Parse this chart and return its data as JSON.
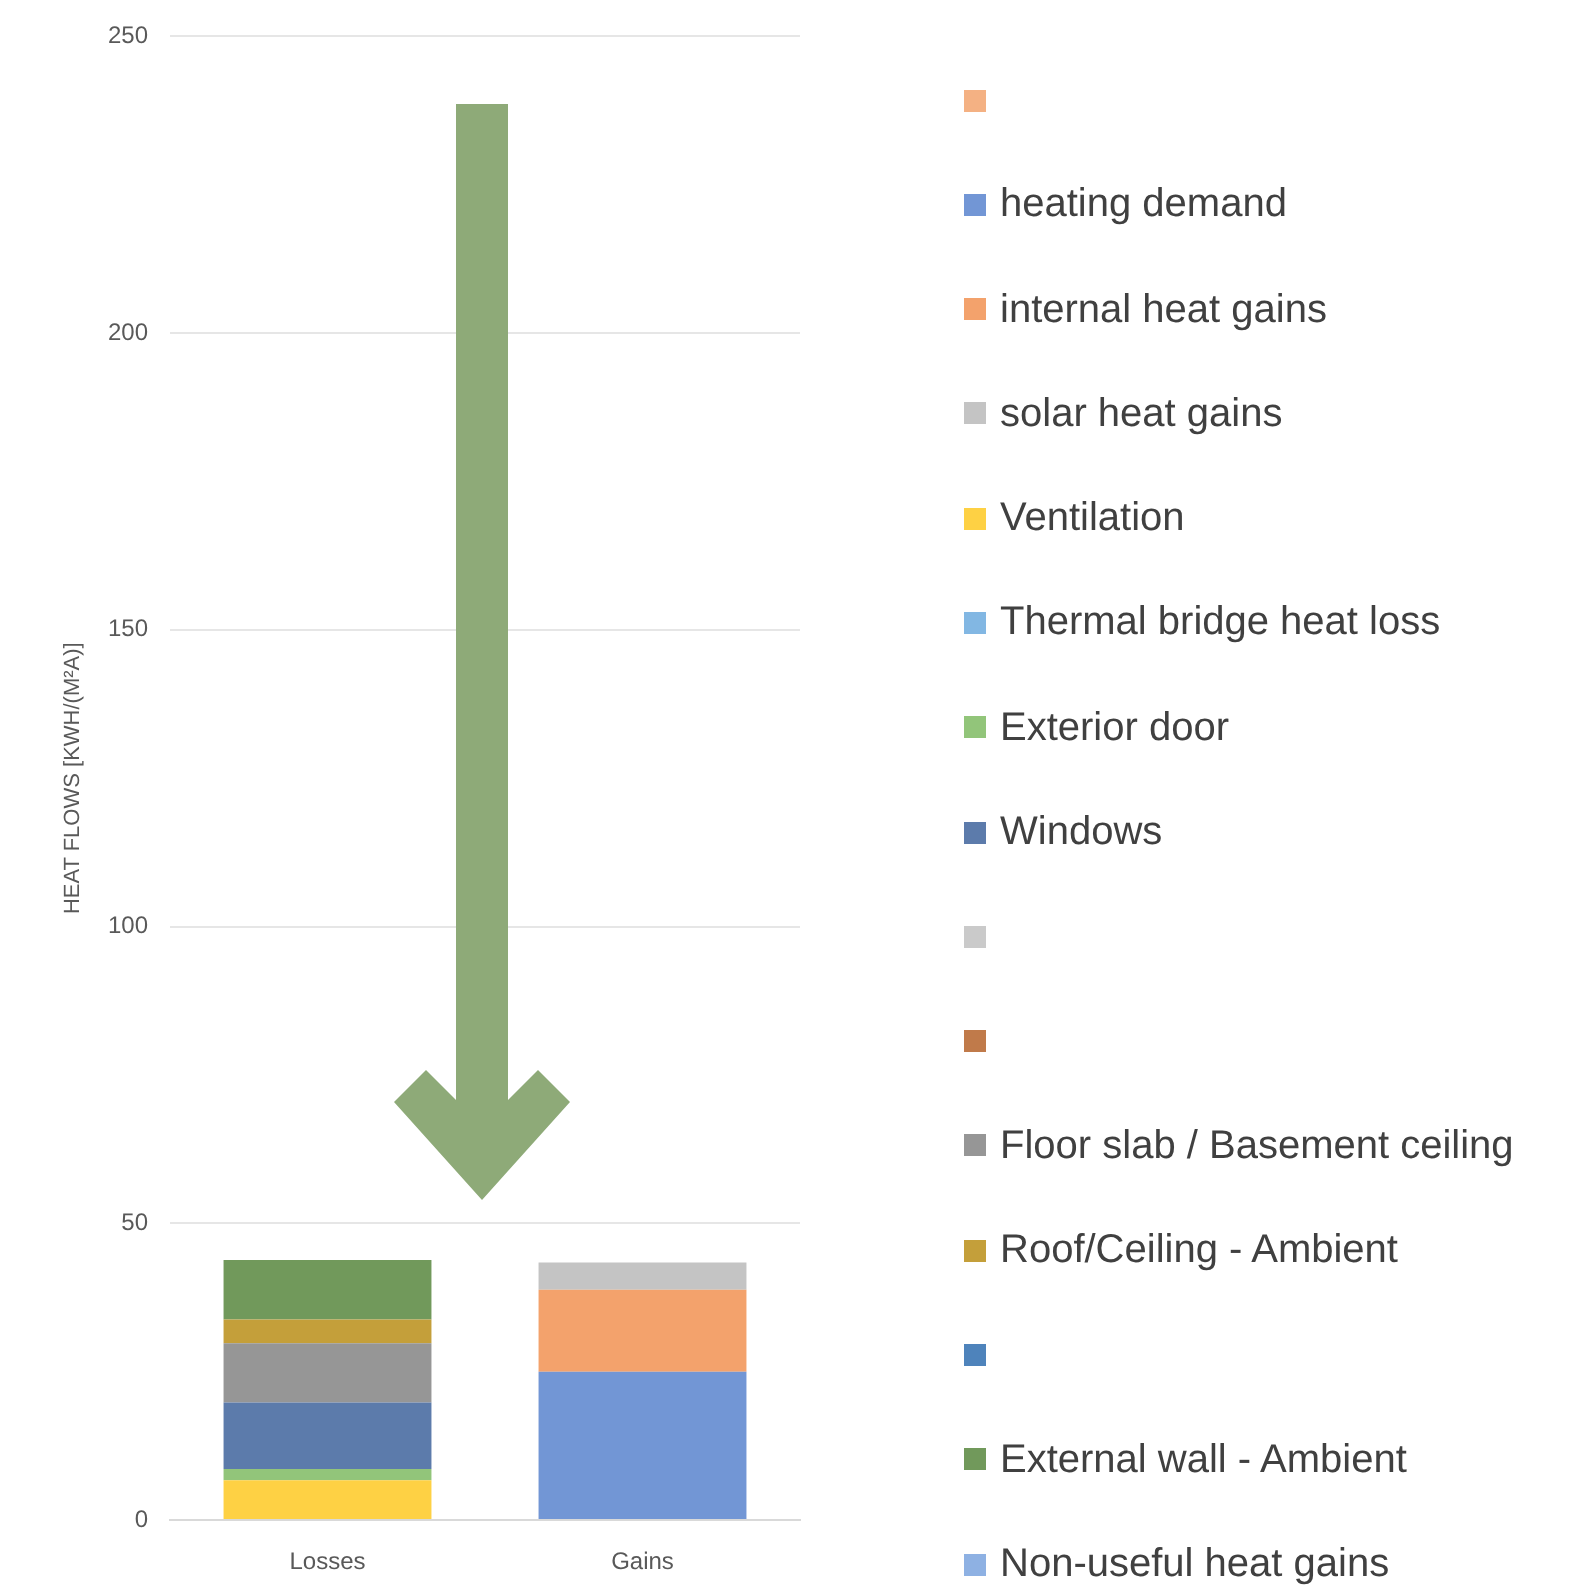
{
  "chart_data": {
    "type": "bar",
    "categories": [
      "Losses",
      "Gains"
    ],
    "ylabel": "HEAT FLOWS [KWH/(M²A)]",
    "ylim": [
      0,
      250
    ],
    "yticks": [
      0,
      50,
      100,
      150,
      200,
      250
    ],
    "stacked": true,
    "grid": "y",
    "legend": "right",
    "series": [
      {
        "color": "#f4b183",
        "values": [
          null,
          null
        ]
      },
      {
        "name": "heating demand",
        "color": "#7296d5",
        "values": [
          null,
          25
        ]
      },
      {
        "name": "internal heat gains",
        "color": "#f3a26c",
        "values": [
          null,
          13.8
        ]
      },
      {
        "name": "solar heat gains",
        "color": "#c4c4c4",
        "values": [
          null,
          4.6
        ]
      },
      {
        "name": "Ventilation",
        "color": "#fed144",
        "values": [
          6.7,
          null
        ]
      },
      {
        "name": "Thermal bridge heat loss",
        "color": "#82b7e3",
        "values": [
          null,
          null
        ]
      },
      {
        "name": "Exterior door",
        "color": "#92c57a",
        "values": [
          1.9,
          null
        ]
      },
      {
        "name": "Windows",
        "color": "#5c7bab",
        "values": [
          11.2,
          null
        ]
      },
      {
        "color": "#cacaca",
        "values": [
          null,
          null
        ]
      },
      {
        "color": "#c07a4a",
        "values": [
          null,
          null
        ]
      },
      {
        "name": "Floor slab / Basement ceiling",
        "color": "#969696",
        "values": [
          10,
          null
        ]
      },
      {
        "name": "Roof/Ceiling - Ambient",
        "color": "#c49f3a",
        "values": [
          4,
          null
        ]
      },
      {
        "color": "#4e83bb",
        "values": [
          null,
          null
        ]
      },
      {
        "name": "External wall - Ambient",
        "color": "#71995b",
        "values": [
          10,
          null
        ]
      },
      {
        "name": "Non-useful heat gains",
        "color": "#8eb1e3",
        "values": [
          null,
          null
        ]
      }
    ]
  }
}
